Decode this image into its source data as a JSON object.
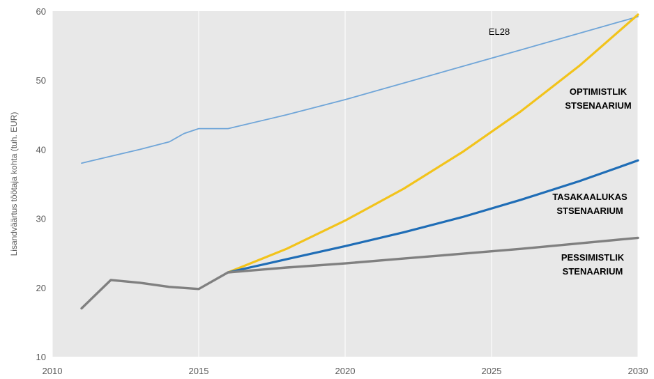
{
  "chart_data": {
    "type": "line",
    "ylabel": "Lisandväärtus töötaja kohta (tuh. EUR)",
    "xlabel": "",
    "xlim": [
      2010,
      2030
    ],
    "ylim": [
      10,
      60
    ],
    "xticks": [
      "2010",
      "2015",
      "2020",
      "2025",
      "2030"
    ],
    "yticks": [
      "10",
      "20",
      "30",
      "40",
      "50",
      "60"
    ],
    "grid": true,
    "series": [
      {
        "name": "EL28",
        "color": "#6fa5d8",
        "x": [
          2011,
          2012,
          2013,
          2014,
          2014.5,
          2015,
          2016,
          2018,
          2020,
          2022,
          2024,
          2026,
          2028,
          2030
        ],
        "values": [
          38,
          39,
          40,
          41.1,
          42.3,
          43,
          43,
          45,
          47.2,
          49.6,
          52.0,
          54.4,
          56.8,
          59.2
        ]
      },
      {
        "name": "OPTIMISTLIK STSENAARIUM",
        "color": "#f2c31b",
        "x": [
          2016,
          2018,
          2020,
          2022,
          2024,
          2026,
          2028,
          2030
        ],
        "values": [
          22.2,
          25.6,
          29.7,
          34.3,
          39.6,
          45.5,
          52.1,
          59.5
        ]
      },
      {
        "name": "TASAKAALUKAS STSENAARIUM",
        "color": "#1f6db6",
        "x": [
          2016,
          2018,
          2020,
          2022,
          2024,
          2026,
          2028,
          2030
        ],
        "values": [
          22.2,
          24.1,
          26.0,
          28.0,
          30.2,
          32.7,
          35.4,
          38.4
        ]
      },
      {
        "name": "PESSIMISTLIK STENAARIUM",
        "color": "#808080",
        "x": [
          2011,
          2012,
          2013,
          2014,
          2015,
          2016,
          2018,
          2020,
          2022,
          2024,
          2026,
          2028,
          2030
        ],
        "values": [
          17,
          21.1,
          20.7,
          20.1,
          19.8,
          22.2,
          22.9,
          23.5,
          24.2,
          24.9,
          25.6,
          26.4,
          27.2
        ]
      }
    ],
    "annotations": [
      {
        "lines": [
          "EL28"
        ],
        "series": 0,
        "bold": false
      },
      {
        "lines": [
          "OPTIMISTLIK",
          "STSENAARIUM"
        ],
        "series": 1,
        "bold": true
      },
      {
        "lines": [
          "TASAKAALUKAS",
          "STSENAARIUM"
        ],
        "series": 2,
        "bold": true
      },
      {
        "lines": [
          "PESSIMISTLIK",
          "STENAARIUM"
        ],
        "series": 3,
        "bold": true
      }
    ]
  }
}
